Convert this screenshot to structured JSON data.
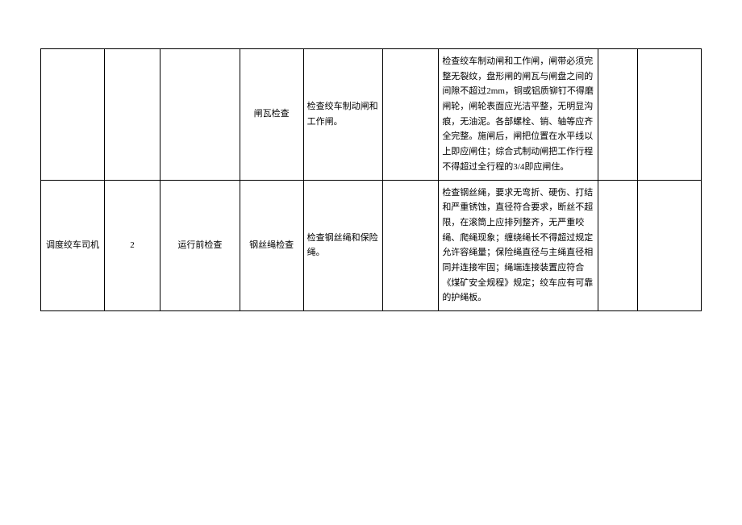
{
  "table": {
    "rows": [
      {
        "c1": "",
        "c2": "",
        "c3": "",
        "c4": "闸瓦检查",
        "c5": "检查绞车制动闸和工作闸。",
        "c6": "",
        "c7": "检查绞车制动闸和工作闸，闸带必须完整无裂纹，盘形闸的闸瓦与闸盘之间的间隙不超过2mm，铜或铝质铆钉不得磨闸轮，闸轮表面应光洁平整，无明显沟痕，无油泥。各部螺栓、销、轴等应齐全完整。施闸后，闸把位置在水平线以上即应闸住；综合式制动闸把工作行程不得超过全行程的3/4即应闸住。",
        "c8": "",
        "c9": ""
      },
      {
        "c1": "调度绞车司机",
        "c2": "2",
        "c3": "运行前检查",
        "c4": "钢丝绳检查",
        "c5": "检查钢丝绳和保险绳。",
        "c6": "",
        "c7": "检查钢丝绳，要求无弯折、硬伤、打结和严重锈蚀，直径符合要求，断丝不超限，在滚筒上应排列整齐，无严重咬绳、爬绳现象；缠绕绳长不得超过规定允许容绳量；保险绳直径与主绳直径相同并连接牢固；绳端连接装置应符合《煤矿安全规程》规定；绞车应有可靠的护绳板。",
        "c8": "",
        "c9": ""
      }
    ],
    "styling": {
      "border_color": "#000000",
      "background_color": "#ffffff",
      "text_color": "#000000",
      "font_size": 11,
      "line_height": 1.7,
      "font_family": "SimSun"
    }
  }
}
